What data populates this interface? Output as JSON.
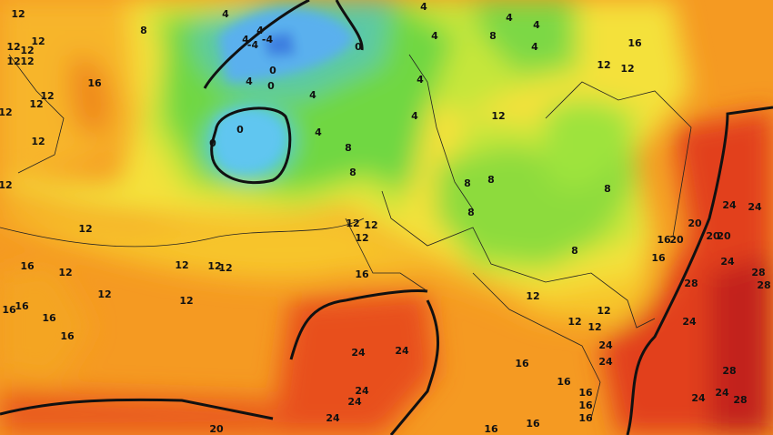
{
  "labels": [
    12,
    12,
    12,
    12,
    12,
    12,
    16,
    12,
    12,
    12,
    12,
    12,
    12,
    16,
    12,
    12,
    12,
    12,
    12,
    12,
    16,
    16,
    16,
    16,
    8,
    4,
    4,
    4,
    -4,
    -4,
    4,
    0,
    0,
    4,
    0,
    0,
    0,
    4,
    8,
    8,
    4,
    4,
    8,
    4,
    4,
    4,
    4,
    4,
    16,
    12,
    12,
    12,
    8,
    8,
    8,
    8,
    8,
    12,
    12,
    12,
    16,
    12,
    16,
    16,
    20,
    20,
    20,
    24,
    24,
    20,
    24,
    28,
    28,
    28,
    24,
    12,
    12,
    12,
    24,
    24,
    28,
    24,
    24,
    28,
    24,
    24,
    24,
    24,
    16,
    16,
    16,
    16,
    16,
    24,
    16,
    16,
    20
  ]
}
